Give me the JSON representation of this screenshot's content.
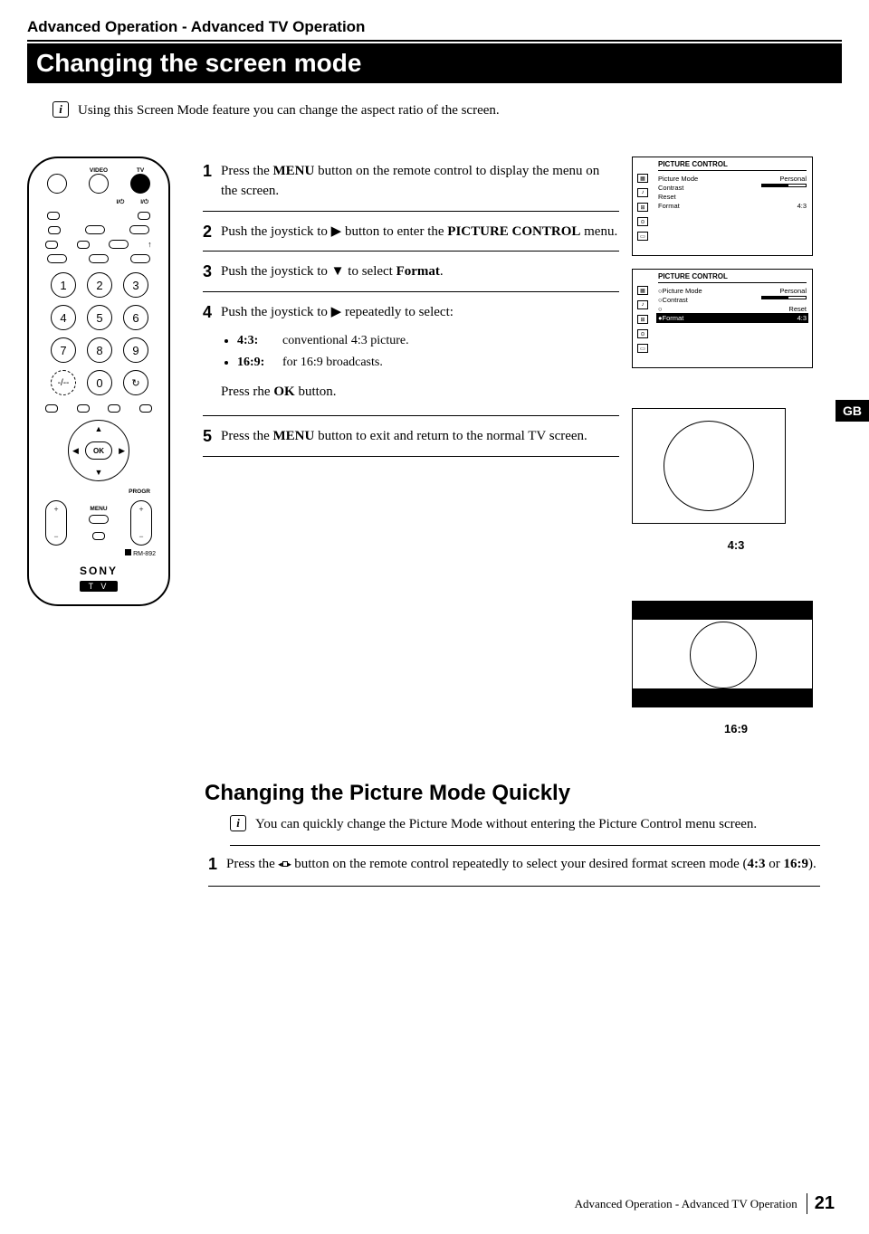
{
  "breadcrumb": "Advanced Operation - Advanced TV Operation",
  "title": "Changing the screen mode",
  "intro": "Using this Screen Mode feature you can change the aspect ratio of the screen.",
  "steps": [
    {
      "n": "1",
      "html": "Press the <strong>MENU</strong> button on the remote control to display the menu on the screen."
    },
    {
      "n": "2",
      "html": "Push the joystick to ▶ button to enter the <strong>PICTURE CONTROL</strong> menu."
    },
    {
      "n": "3",
      "html": "Push the joystick to ▼ to select <strong>Format</strong>."
    },
    {
      "n": "4",
      "html": "Push the joystick to ▶ repeatedly to select:",
      "bullets": [
        {
          "ratio": "4:3:",
          "desc": "conventional 4:3 picture."
        },
        {
          "ratio": "16:9:",
          "desc": "for 16:9 broadcasts."
        }
      ],
      "after": "Press rhe <strong>OK</strong> button."
    },
    {
      "n": "5",
      "html": "Press the <strong>MENU</strong> button to exit and return to the normal TV screen."
    }
  ],
  "osd": {
    "title": "PICTURE  CONTROL",
    "rows": [
      {
        "l": "Picture Mode",
        "r": "Personal"
      },
      {
        "l": "Contrast",
        "r": "___bar___"
      },
      {
        "l": "Reset",
        "r": ""
      },
      {
        "l": "Format",
        "r": "4:3"
      }
    ]
  },
  "ratio43": "4:3",
  "ratio169": "16:9",
  "gb": "GB",
  "section2": {
    "title": "Changing the Picture Mode Quickly",
    "intro": "You can quickly change the Picture Mode without entering the Picture Control menu screen.",
    "step_n": "1",
    "step_a": "Press the ",
    "step_b": " button on the remote control repeatedly to select your desired format screen mode (<strong>4:3</strong> or <strong>16:9</strong>)."
  },
  "remote": {
    "video": "VIDEO",
    "tv": "TV",
    "power": "I/⏻",
    "nums": [
      "1",
      "2",
      "3",
      "4",
      "5",
      "6",
      "7",
      "8",
      "9",
      "-/--",
      "0",
      "↻"
    ],
    "ok": "OK",
    "progr": "PROGR",
    "menu": "MENU",
    "rm": "RM-892",
    "brand": "SONY",
    "tvlabel": "T V"
  },
  "footer": {
    "text": "Advanced Operation - Advanced TV Operation",
    "page": "21"
  }
}
